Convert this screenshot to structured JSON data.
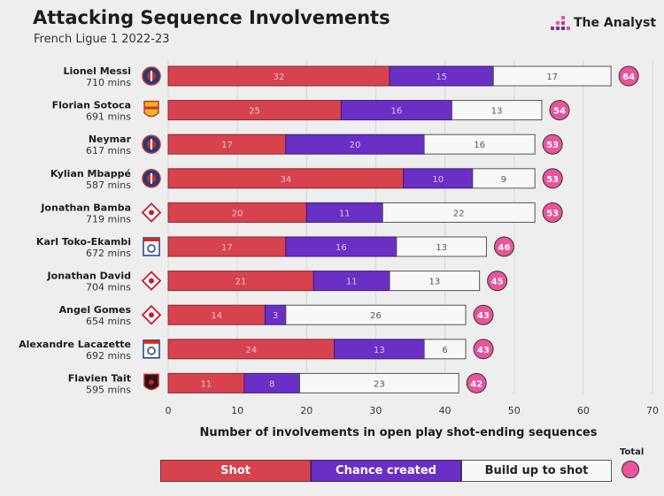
{
  "header": {
    "title": "Attacking Sequence Involvements",
    "subtitle": "French Ligue 1 2022-23",
    "brand": "The Analyst"
  },
  "colors": {
    "shot": "#d7424f",
    "chance": "#6a2fc4",
    "build": "#f8f8f8",
    "total": "#e9549a"
  },
  "chart_data": {
    "type": "bar",
    "orientation": "horizontal",
    "stacked": true,
    "title": "Attacking Sequence Involvements",
    "subtitle": "French Ligue 1 2022-23",
    "xlabel": "Number of involvements in open play shot-ending sequences",
    "xlim": [
      0,
      70
    ],
    "xticks": [
      0,
      10,
      20,
      30,
      40,
      50,
      60,
      70
    ],
    "categories": [
      "Lionel Messi",
      "Florian Sotoca",
      "Neymar",
      "Kylian Mbappé",
      "Jonathan Bamba",
      "Karl Toko-Ekambi",
      "Jonathan David",
      "Angel Gomes",
      "Alexandre Lacazette",
      "Flavien Tait"
    ],
    "minutes": [
      "710 mins",
      "691 mins",
      "617 mins",
      "587 mins",
      "719 mins",
      "672 mins",
      "704 mins",
      "654 mins",
      "692 mins",
      "595 mins"
    ],
    "clubs": [
      "psg",
      "lens",
      "psg",
      "psg",
      "lille",
      "lyon",
      "lille",
      "lille",
      "lyon",
      "rennes"
    ],
    "series": [
      {
        "name": "Shot",
        "values": [
          32,
          25,
          17,
          34,
          20,
          17,
          21,
          14,
          24,
          11
        ]
      },
      {
        "name": "Chance created",
        "values": [
          15,
          16,
          20,
          10,
          11,
          16,
          11,
          3,
          13,
          8
        ]
      },
      {
        "name": "Build up to shot",
        "values": [
          17,
          13,
          16,
          9,
          22,
          13,
          13,
          26,
          6,
          23
        ]
      }
    ],
    "totals": [
      64,
      54,
      53,
      53,
      53,
      46,
      45,
      43,
      43,
      42
    ],
    "legend": [
      "Shot",
      "Chance created",
      "Build up to shot",
      "Total"
    ],
    "legend_position": "bottom"
  }
}
